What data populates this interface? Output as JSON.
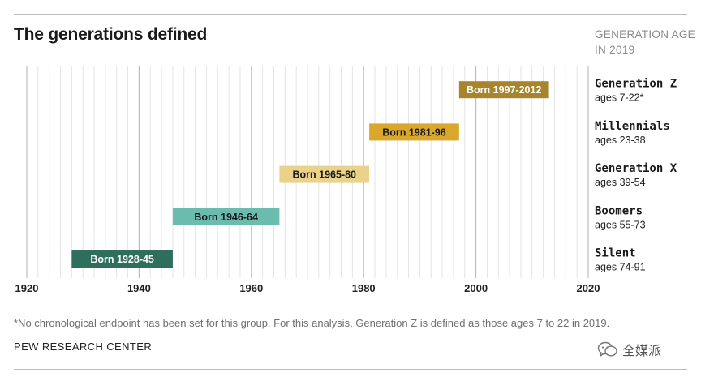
{
  "header": {
    "title": "The generations defined",
    "age_label_line1": "GENERATION AGE",
    "age_label_line2": "IN 2019"
  },
  "footnote": "*No chronological endpoint has been set for this group. For this analysis, Generation Z is defined as those ages 7 to 22 in 2019.",
  "source": "PEW RESEARCH CENTER",
  "watermark": {
    "text": "全媒派",
    "icon": "wechat-icon"
  },
  "colors": {
    "silent": "#2e6e5c",
    "boomers": "#6bbcaf",
    "genx": "#ead28a",
    "millennials": "#d9a72c",
    "genz": "#a8852c",
    "major_grid": "#bdbdbd",
    "minor_grid": "#e4e4e4"
  },
  "chart_data": {
    "type": "bar",
    "orientation": "horizontal-range",
    "title": "The generations defined",
    "xlabel": "",
    "xlim": [
      1920,
      2020
    ],
    "x_ticks": [
      1920,
      1940,
      1960,
      1980,
      2000,
      2020
    ],
    "grid": true,
    "series": [
      {
        "name": "Generation Z",
        "start": 1997,
        "end": 2012,
        "label": "Born 1997-2012",
        "ages": "ages 7-22*",
        "color_key": "genz",
        "text_color": "#ffffff"
      },
      {
        "name": "Millennials",
        "start": 1981,
        "end": 1996,
        "label": "Born 1981-96",
        "ages": "ages 23-38",
        "color_key": "millennials",
        "text_color": "#1a1a1a"
      },
      {
        "name": "Generation X",
        "start": 1965,
        "end": 1980,
        "label": "Born 1965-80",
        "ages": "ages 39-54",
        "color_key": "genx",
        "text_color": "#1a1a1a"
      },
      {
        "name": "Boomers",
        "start": 1946,
        "end": 1964,
        "label": "Born 1946-64",
        "ages": "ages 55-73",
        "color_key": "boomers",
        "text_color": "#1a1a1a"
      },
      {
        "name": "Silent",
        "start": 1928,
        "end": 1945,
        "label": "Born 1928-45",
        "ages": "ages 74-91",
        "color_key": "silent",
        "text_color": "#ffffff"
      }
    ]
  }
}
